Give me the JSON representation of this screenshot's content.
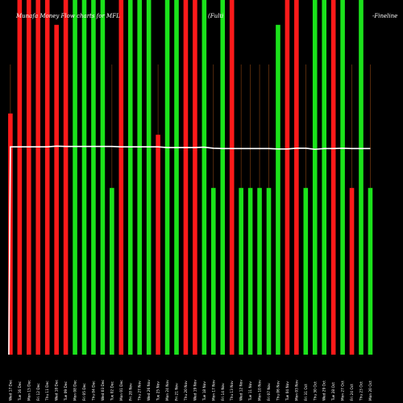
{
  "header": {
    "title": "Munafa Money Flow charts for MFL",
    "code": "(Fulti",
    "suffix": "-Fineline"
  },
  "chart_data": {
    "type": "bar",
    "title": "Munafa Money Flow charts for MFL",
    "xlabel": "",
    "ylabel": "",
    "ylim": [
      0,
      100
    ],
    "grid": false,
    "legend": "none",
    "colors": {
      "up": "#1be31b",
      "down": "#ff1a1a",
      "line": "#ffffff",
      "stem": "#8b4513",
      "background": "#000000"
    },
    "categories": [
      "Wed 17 Dec",
      "Tue 16 Dec",
      "Mon 15 Dec",
      "Fri 12 Dec",
      "Thu 11 Dec",
      "Wed 10 Dec",
      "Tue 09 Dec",
      "Mon 08 Dec",
      "Fri 05 Dec",
      "Thu 04 Dec",
      "Wed 03 Dec",
      "Tue 02 Dec",
      "Mon 01 Dec",
      "Fri 28 Nov",
      "Thu 27 Nov",
      "Wed 26 Nov",
      "Tue 25 Nov",
      "Mon 24 Nov",
      "Fri 21 Nov",
      "Thu 20 Nov",
      "Wed 19 Nov",
      "Tue 18 Nov",
      "Mon 17 Nov",
      "Fri 14 Nov",
      "Thu 13 Nov",
      "Wed 12 Nov",
      "Tue 11 Nov",
      "Mon 10 Nov",
      "Fri 07 Nov",
      "Thu 06 Nov",
      "Tue 04 Nov",
      "Mon 03 Nov",
      "Fri 31 Oct",
      "Thu 30 Oct",
      "Wed 29 Oct",
      "Tue 28 Oct",
      "Mon 27 Oct",
      "Fri 24 Oct",
      "Thu 23 Oct",
      "Mon 20 Oct"
    ],
    "bar_values": [
      68,
      100,
      100,
      100,
      100,
      93,
      100,
      100,
      100,
      100,
      100,
      47,
      100,
      100,
      100,
      100,
      62,
      100,
      100,
      100,
      100,
      100,
      47,
      100,
      100,
      47,
      47,
      47,
      47,
      93,
      100,
      100,
      47,
      100,
      100,
      100,
      100,
      47,
      100,
      47
    ],
    "bar_colors": [
      "red",
      "red",
      "red",
      "red",
      "red",
      "red",
      "red",
      "green",
      "green",
      "green",
      "green",
      "green",
      "red",
      "green",
      "green",
      "green",
      "red",
      "green",
      "green",
      "red",
      "red",
      "green",
      "green",
      "green",
      "red",
      "green",
      "green",
      "green",
      "green",
      "green",
      "red",
      "red",
      "green",
      "green",
      "green",
      "red",
      "green",
      "red",
      "green",
      "green"
    ],
    "line_values": [
      58.6,
      58.6,
      58.6,
      58.6,
      58.6,
      58.8,
      58.7,
      58.7,
      58.7,
      58.7,
      58.7,
      58.7,
      58.6,
      58.6,
      58.6,
      58.6,
      58.6,
      58.4,
      58.4,
      58.4,
      58.4,
      58.5,
      58.2,
      58.1,
      58.1,
      58.1,
      58.1,
      58.1,
      58.1,
      58.0,
      58.0,
      58.2,
      58.2,
      57.9,
      58.1,
      58.1,
      58.2,
      58.1,
      58.1,
      58.1
    ]
  }
}
